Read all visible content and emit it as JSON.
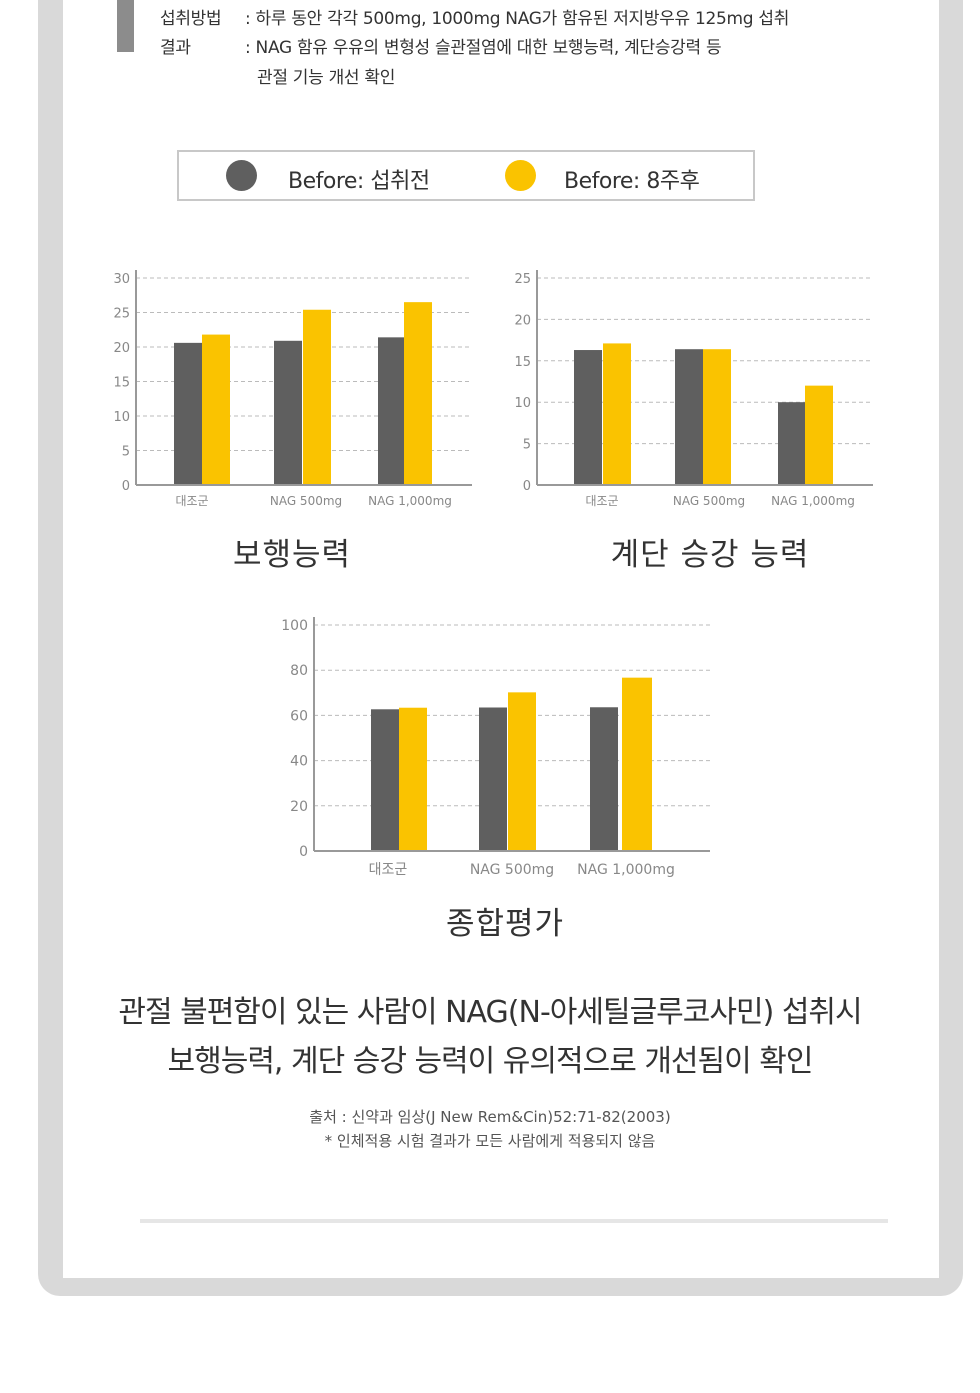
{
  "study": {
    "method_label": "섭취방법",
    "method_text": ": 하루 동안 각각 500mg, 1000mg NAG가 함유된 저지방우유 125mg 섭취",
    "result_label": "결과",
    "result_text_1": ": NAG 함유 우유의 변형성 슬관절염에 대한 보행능력, 계단승강력 등",
    "result_text_2": "관절 기능 개선 확인"
  },
  "legend": {
    "before": "Before: 섭취전",
    "after": "Before: 8주후"
  },
  "colors": {
    "before": "#5f5f5f",
    "after": "#fac300",
    "axis": "#999999",
    "grid": "#bbbbbb",
    "tick_text": "#888888"
  },
  "chart_data": [
    {
      "type": "bar",
      "title": "보행능력",
      "categories": [
        "대조군",
        "NAG 500mg",
        "NAG 1,000mg"
      ],
      "series": [
        {
          "name": "Before: 섭취전",
          "values": [
            20.6,
            20.9,
            21.4
          ]
        },
        {
          "name": "Before: 8주후",
          "values": [
            21.8,
            25.4,
            26.5
          ]
        }
      ],
      "ylim": [
        0,
        30
      ],
      "yticks": [
        0,
        5,
        10,
        15,
        20,
        25,
        30
      ],
      "grid": true
    },
    {
      "type": "bar",
      "title": "계단 승강 능력",
      "categories": [
        "대조군",
        "NAG 500mg",
        "NAG 1,000mg"
      ],
      "series": [
        {
          "name": "Before: 섭취전",
          "values": [
            16.3,
            16.4,
            10.0
          ]
        },
        {
          "name": "Before: 8주후",
          "values": [
            17.1,
            16.4,
            12.0
          ]
        }
      ],
      "ylim": [
        0,
        25
      ],
      "yticks": [
        0,
        5,
        10,
        15,
        20,
        25
      ],
      "grid": true
    },
    {
      "type": "bar",
      "title": "종합평가",
      "categories": [
        "대조군",
        "NAG 500mg",
        "NAG 1,000mg"
      ],
      "series": [
        {
          "name": "Before: 섭취전",
          "values": [
            62.7,
            63.5,
            63.6
          ]
        },
        {
          "name": "Before: 8주후",
          "values": [
            63.4,
            70.2,
            76.7
          ]
        }
      ],
      "ylim": [
        0,
        100
      ],
      "yticks": [
        0,
        20,
        40,
        60,
        80,
        100
      ],
      "grid": true
    }
  ],
  "conclusion": {
    "line1": "관절 불편함이 있는 사람이 NAG(N-아세틸글루코사민) 섭취시",
    "line2": "보행능력, 계단 승강 능력이 유의적으로 개선됨이 확인"
  },
  "source": {
    "line1": "출처 : 신약과 임상(J New Rem&Cin)52:71-82(2003)",
    "line2": "*  인체적용 시험 결과가 모든 사람에게 적용되지 않음"
  }
}
